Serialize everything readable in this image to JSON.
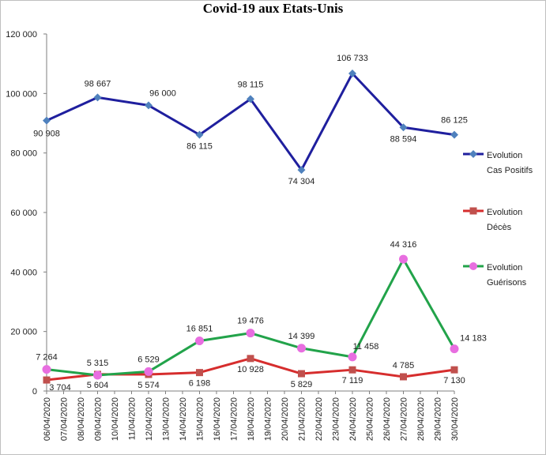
{
  "chart_data": {
    "type": "line",
    "title": "Covid-19 aux Etats-Unis",
    "xlabel": "",
    "ylabel": "",
    "ylim": [
      0,
      120000
    ],
    "yticks": [
      0,
      20000,
      40000,
      60000,
      80000,
      100000,
      120000
    ],
    "ytick_labels": [
      "0",
      "20 000",
      "40 000",
      "60 000",
      "80 000",
      "100 000",
      "120 000"
    ],
    "grid": false,
    "legend_position": "right",
    "categories": [
      "06/04/2020",
      "07/04/2020",
      "08/04/2020",
      "09/04/2020",
      "10/04/2020",
      "11/04/2020",
      "12/04/2020",
      "13/04/2020",
      "14/04/2020",
      "15/04/2020",
      "16/04/2020",
      "17/04/2020",
      "18/04/2020",
      "19/04/2020",
      "20/04/2020",
      "21/04/2020",
      "22/04/2020",
      "23/04/2020",
      "24/04/2020",
      "25/04/2020",
      "26/04/2020",
      "27/04/2020",
      "28/04/2020",
      "29/04/2020",
      "30/04/2020"
    ],
    "series": [
      {
        "name": "Evolution Cas Positifs",
        "legend_lines": [
          "Evolution",
          "Cas Positifs"
        ],
        "color": "#1f1f9e",
        "marker": "diamond",
        "marker_color": "#4f81bd",
        "points": [
          {
            "x": "06/04/2020",
            "y": 90908,
            "label": "90 908"
          },
          {
            "x": "09/04/2020",
            "y": 98667,
            "label": "98 667"
          },
          {
            "x": "12/04/2020",
            "y": 96000,
            "label": "96 000"
          },
          {
            "x": "15/04/2020",
            "y": 86115,
            "label": "86 115"
          },
          {
            "x": "18/04/2020",
            "y": 98115,
            "label": "98 115"
          },
          {
            "x": "21/04/2020",
            "y": 74304,
            "label": "74 304"
          },
          {
            "x": "24/04/2020",
            "y": 106733,
            "label": "106 733"
          },
          {
            "x": "27/04/2020",
            "y": 88594,
            "label": "88 594"
          },
          {
            "x": "30/04/2020",
            "y": 86125,
            "label": "86 125"
          }
        ]
      },
      {
        "name": "Evolution Décès",
        "legend_lines": [
          "Evolution",
          "Décès"
        ],
        "color": "#d62d2d",
        "marker": "square",
        "marker_color": "#c0504d",
        "points": [
          {
            "x": "06/04/2020",
            "y": 3704,
            "label": "3 704"
          },
          {
            "x": "09/04/2020",
            "y": 5604,
            "label": "5 604"
          },
          {
            "x": "12/04/2020",
            "y": 5574,
            "label": "5 574"
          },
          {
            "x": "15/04/2020",
            "y": 6198,
            "label": "6 198"
          },
          {
            "x": "18/04/2020",
            "y": 10928,
            "label": "10 928"
          },
          {
            "x": "21/04/2020",
            "y": 5829,
            "label": "5 829"
          },
          {
            "x": "24/04/2020",
            "y": 7119,
            "label": "7 119"
          },
          {
            "x": "27/04/2020",
            "y": 4785,
            "label": "4 785"
          },
          {
            "x": "30/04/2020",
            "y": 7130,
            "label": "7 130"
          }
        ]
      },
      {
        "name": "Evolution Guérisons",
        "legend_lines": [
          "Evolution",
          "Guérisons"
        ],
        "color": "#22a34a",
        "marker": "circle",
        "marker_color": "#e86ee0",
        "points": [
          {
            "x": "06/04/2020",
            "y": 7264,
            "label": "7 264"
          },
          {
            "x": "09/04/2020",
            "y": 5315,
            "label": "5 315"
          },
          {
            "x": "12/04/2020",
            "y": 6529,
            "label": "6 529"
          },
          {
            "x": "15/04/2020",
            "y": 16851,
            "label": "16 851"
          },
          {
            "x": "18/04/2020",
            "y": 19476,
            "label": "19 476"
          },
          {
            "x": "21/04/2020",
            "y": 14399,
            "label": "14 399"
          },
          {
            "x": "24/04/2020",
            "y": 11458,
            "label": "11 458"
          },
          {
            "x": "27/04/2020",
            "y": 44316,
            "label": "44 316"
          },
          {
            "x": "30/04/2020",
            "y": 14183,
            "label": "14 183"
          }
        ]
      }
    ]
  }
}
